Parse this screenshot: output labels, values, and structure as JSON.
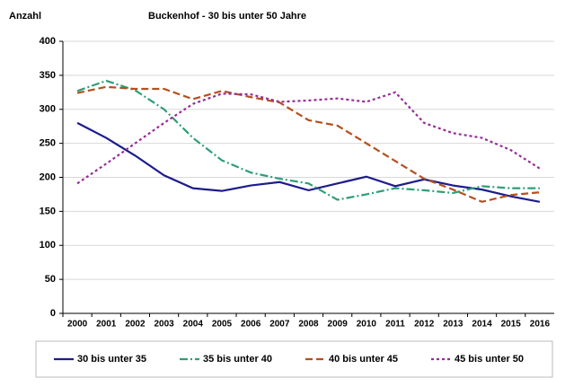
{
  "chart_data": {
    "type": "line",
    "title": "Buckenhof - 30 bis unter 50 Jahre",
    "y_label": "Anzahl",
    "categories": [
      "2000",
      "2001",
      "2002",
      "2003",
      "2004",
      "2005",
      "2006",
      "2007",
      "2008",
      "2009",
      "2010",
      "2011",
      "2012",
      "2013",
      "2014",
      "2015",
      "2016"
    ],
    "series": [
      {
        "name": "30 bis unter 35",
        "color": "#1c1c8c",
        "dash": "none",
        "values": [
          280,
          258,
          232,
          203,
          184,
          180,
          188,
          193,
          181,
          191,
          201,
          187,
          197,
          188,
          182,
          172,
          164
        ]
      },
      {
        "name": "35 bis unter 40",
        "color": "#2e9e78",
        "dash": "9 3 2 3",
        "values": [
          327,
          342,
          328,
          300,
          258,
          225,
          207,
          198,
          191,
          167,
          175,
          184,
          181,
          177,
          187,
          184,
          184
        ]
      },
      {
        "name": "40 bis unter 45",
        "color": "#b4501e",
        "dash": "8 4",
        "values": [
          324,
          333,
          330,
          330,
          315,
          327,
          318,
          310,
          284,
          276,
          250,
          224,
          198,
          182,
          164,
          174,
          178
        ]
      },
      {
        "name": "45 bis unter 50",
        "color": "#972c97",
        "dash": "3 3",
        "values": [
          191,
          220,
          250,
          280,
          308,
          323,
          322,
          311,
          313,
          316,
          311,
          325,
          280,
          265,
          258,
          240,
          213
        ]
      }
    ],
    "ylim": [
      0,
      400
    ],
    "yticks": [
      0,
      50,
      100,
      150,
      200,
      250,
      300,
      350,
      400
    ],
    "grid": true
  }
}
